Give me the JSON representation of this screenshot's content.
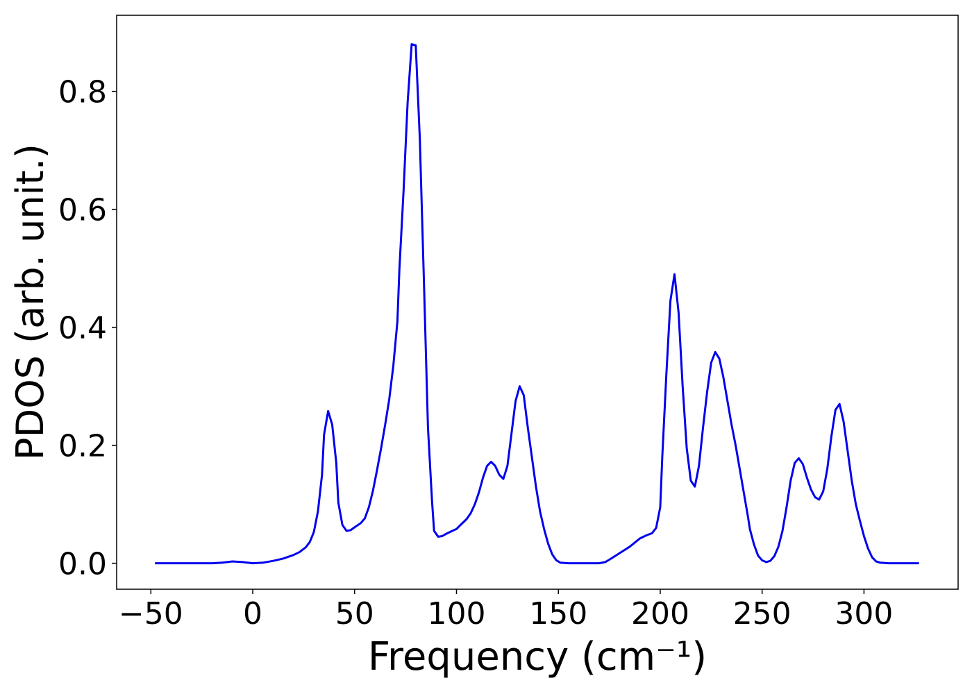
{
  "chart_data": {
    "type": "line",
    "xlabel": "Frequency (cm⁻¹)",
    "ylabel": "PDOS (arb. unit.)",
    "xlim": [
      -66.8,
      346.2
    ],
    "ylim": [
      -0.044,
      0.929
    ],
    "xticks": [
      {
        "value": -50,
        "label": "−50"
      },
      0,
      50,
      100,
      150,
      200,
      250,
      300
    ],
    "yticks": [
      {
        "value": 0,
        "label": "0.0"
      },
      0.2,
      0.4,
      0.6,
      0.8
    ],
    "grid": false,
    "x": [
      -48,
      -20,
      -15,
      -10,
      -5,
      0,
      5,
      10,
      15,
      20,
      23,
      26,
      28,
      30,
      32,
      34,
      35,
      37,
      39,
      41,
      42,
      44,
      46,
      48,
      50,
      53,
      55,
      57,
      59,
      61,
      63,
      65,
      67,
      69,
      71,
      72,
      74,
      76,
      78,
      80,
      82,
      84,
      86,
      88,
      89,
      91,
      93,
      95,
      98,
      100,
      102,
      105,
      107,
      109,
      111,
      113,
      115,
      117,
      119,
      121,
      123,
      125,
      127,
      129,
      131,
      133,
      135,
      137,
      139,
      141,
      143,
      145,
      147,
      149,
      151,
      155,
      170,
      173,
      175,
      180,
      185,
      190,
      193,
      196,
      198,
      200,
      201,
      203,
      205,
      207,
      209,
      211,
      213,
      215,
      217,
      219,
      221,
      223,
      225,
      227,
      229,
      231,
      233,
      235,
      237,
      239,
      241,
      243,
      244,
      246,
      248,
      250,
      252,
      254,
      256,
      258,
      260,
      262,
      264,
      266,
      268,
      270,
      272,
      274,
      276,
      278,
      280,
      282,
      284,
      286,
      288,
      290,
      292,
      294,
      296,
      298,
      300,
      302,
      304,
      306,
      308,
      312,
      327
    ],
    "series": [
      {
        "name": "PDOS",
        "color": "#0000ee",
        "values": [
          0,
          0,
          0.001,
          0.003,
          0.002,
          0,
          0.001,
          0.004,
          0.008,
          0.014,
          0.019,
          0.027,
          0.036,
          0.053,
          0.088,
          0.15,
          0.218,
          0.258,
          0.235,
          0.17,
          0.103,
          0.065,
          0.055,
          0.056,
          0.061,
          0.068,
          0.076,
          0.095,
          0.123,
          0.158,
          0.195,
          0.235,
          0.278,
          0.335,
          0.41,
          0.5,
          0.63,
          0.78,
          0.88,
          0.878,
          0.72,
          0.48,
          0.23,
          0.105,
          0.055,
          0.045,
          0.046,
          0.05,
          0.055,
          0.058,
          0.065,
          0.075,
          0.085,
          0.1,
          0.12,
          0.145,
          0.165,
          0.172,
          0.165,
          0.15,
          0.143,
          0.165,
          0.22,
          0.275,
          0.3,
          0.285,
          0.23,
          0.18,
          0.13,
          0.088,
          0.058,
          0.033,
          0.015,
          0.005,
          0.001,
          0,
          0,
          0.002,
          0.006,
          0.017,
          0.028,
          0.042,
          0.047,
          0.051,
          0.06,
          0.095,
          0.18,
          0.32,
          0.445,
          0.49,
          0.425,
          0.3,
          0.195,
          0.14,
          0.13,
          0.165,
          0.23,
          0.29,
          0.34,
          0.358,
          0.347,
          0.315,
          0.275,
          0.235,
          0.2,
          0.16,
          0.12,
          0.08,
          0.058,
          0.032,
          0.013,
          0.005,
          0.002,
          0.004,
          0.012,
          0.028,
          0.055,
          0.095,
          0.14,
          0.17,
          0.178,
          0.168,
          0.145,
          0.125,
          0.112,
          0.108,
          0.122,
          0.16,
          0.215,
          0.26,
          0.27,
          0.24,
          0.19,
          0.14,
          0.1,
          0.072,
          0.046,
          0.025,
          0.01,
          0.003,
          0.001,
          0,
          0
        ]
      }
    ]
  }
}
